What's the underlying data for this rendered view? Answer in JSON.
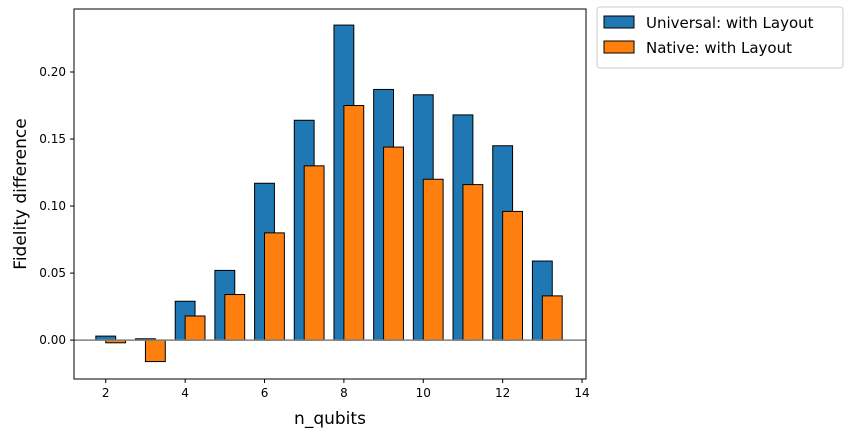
{
  "chart_data": {
    "type": "bar",
    "title": "",
    "xlabel": "n_qubits",
    "ylabel": "Fidelity difference",
    "x": [
      2,
      3,
      4,
      5,
      6,
      7,
      8,
      9,
      10,
      11,
      12,
      13
    ],
    "xlim": [
      1.2,
      14.1
    ],
    "ylim": [
      -0.029,
      0.247
    ],
    "xticks": [
      2,
      4,
      6,
      8,
      10,
      12,
      14
    ],
    "yticks": [
      0.0,
      0.05,
      0.1,
      0.15,
      0.2
    ],
    "ytick_format": "2dp",
    "grid": false,
    "reference_line_y": 0,
    "legend_position": "outside-top-right",
    "series": [
      {
        "name": "Universal: with Layout",
        "color": "#1f77b4",
        "values": [
          0.003,
          0.001,
          0.029,
          0.052,
          0.117,
          0.164,
          0.235,
          0.187,
          0.183,
          0.168,
          0.145,
          0.059
        ]
      },
      {
        "name": "Native: with Layout",
        "color": "#ff7f0e",
        "values": [
          -0.002,
          -0.016,
          0.018,
          0.034,
          0.08,
          0.13,
          0.175,
          0.144,
          0.12,
          0.116,
          0.096,
          0.033
        ]
      }
    ]
  }
}
